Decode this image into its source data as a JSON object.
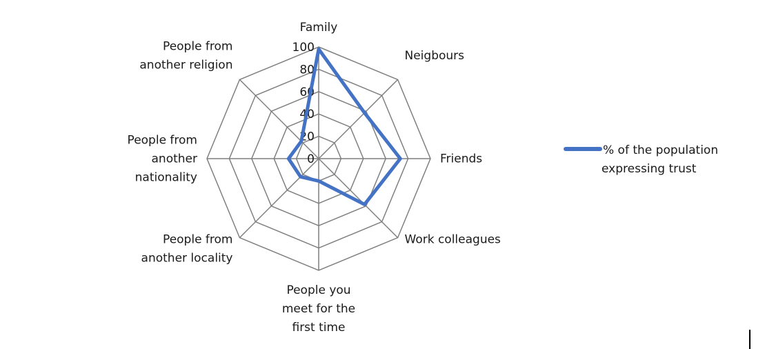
{
  "chart_data": {
    "type": "radar",
    "categories": [
      [
        "Family"
      ],
      [
        "Neigbours"
      ],
      [
        "Friends"
      ],
      [
        "Work colleagues"
      ],
      [
        "People you",
        "meet for the",
        "first time"
      ],
      [
        "People from",
        "another locality"
      ],
      [
        "People from",
        "another",
        "nationality"
      ],
      [
        "People from",
        "another religion"
      ]
    ],
    "ticks": [
      "0",
      "20",
      "40",
      "60",
      "80",
      "100"
    ],
    "rmin": 0,
    "rmax": 100,
    "series": [
      {
        "name": "% of the population expressing trust",
        "legend_lines": [
          "% of the population",
          "expressing trust"
        ],
        "values": [
          98,
          58,
          73,
          58,
          20,
          23,
          27,
          22
        ],
        "color": "#4472C4"
      }
    ],
    "grid_color": "#7f7f7f",
    "legend_position": "right"
  }
}
